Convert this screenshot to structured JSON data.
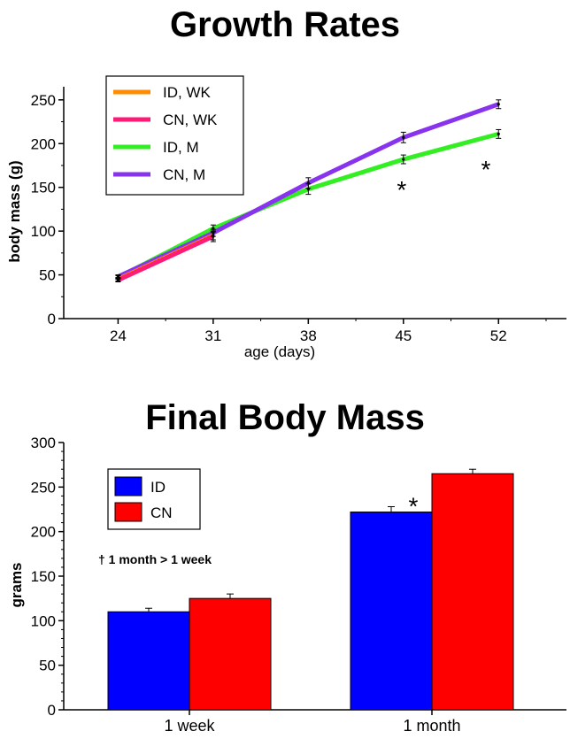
{
  "chart_data": [
    {
      "type": "line",
      "title": "Growth Rates",
      "xlabel": "age (days)",
      "ylabel": "body mass (g)",
      "x": [
        24,
        31,
        38,
        45,
        52
      ],
      "xticks": [
        "24",
        "31",
        "38",
        "45",
        "52"
      ],
      "yticks": [
        "0",
        "50",
        "100",
        "150",
        "200",
        "250"
      ],
      "xlim": [
        20,
        57
      ],
      "ylim": [
        0,
        265
      ],
      "legend_position": "top-left",
      "series": [
        {
          "name": "ID, WK",
          "color": "#ff8c00",
          "x": [
            24,
            31
          ],
          "values": [
            45,
            95
          ],
          "errors": [
            2,
            5
          ]
        },
        {
          "name": "CN, WK",
          "color": "#ff1a75",
          "x": [
            24,
            31
          ],
          "values": [
            44,
            94
          ],
          "errors": [
            2,
            6
          ]
        },
        {
          "name": "ID, M",
          "color": "#33ee22",
          "x": [
            24,
            31,
            38,
            45,
            52
          ],
          "values": [
            47,
            103,
            148,
            182,
            211
          ],
          "errors": [
            2,
            4,
            6,
            5,
            5
          ]
        },
        {
          "name": "CN, M",
          "color": "#8833ee",
          "x": [
            24,
            31,
            38,
            45,
            52
          ],
          "values": [
            48,
            98,
            155,
            207,
            245
          ],
          "errors": [
            2,
            4,
            6,
            6,
            5
          ]
        }
      ],
      "annotations": [
        {
          "text": "*",
          "x": 45,
          "y": 160
        },
        {
          "text": "*",
          "x": 51.2,
          "y": 183
        }
      ]
    },
    {
      "type": "bar",
      "title": "Final Body Mass",
      "xlabel": "",
      "ylabel": "grams",
      "categories": [
        "1 week",
        "1 month"
      ],
      "yticks": [
        "0",
        "50",
        "100",
        "150",
        "200",
        "250",
        "300"
      ],
      "ylim": [
        0,
        300
      ],
      "legend_position": "top-left",
      "series": [
        {
          "name": "ID",
          "color": "#0000ff",
          "values": [
            110,
            222
          ],
          "errors": [
            4,
            6
          ]
        },
        {
          "name": "CN",
          "color": "#ff0000",
          "values": [
            125,
            265
          ],
          "errors": [
            5,
            5
          ]
        }
      ],
      "annotations": [
        {
          "text": "*",
          "category": 1,
          "y": 245
        },
        {
          "text": "† 1 month > 1 week",
          "position": "left-middle"
        }
      ]
    }
  ]
}
